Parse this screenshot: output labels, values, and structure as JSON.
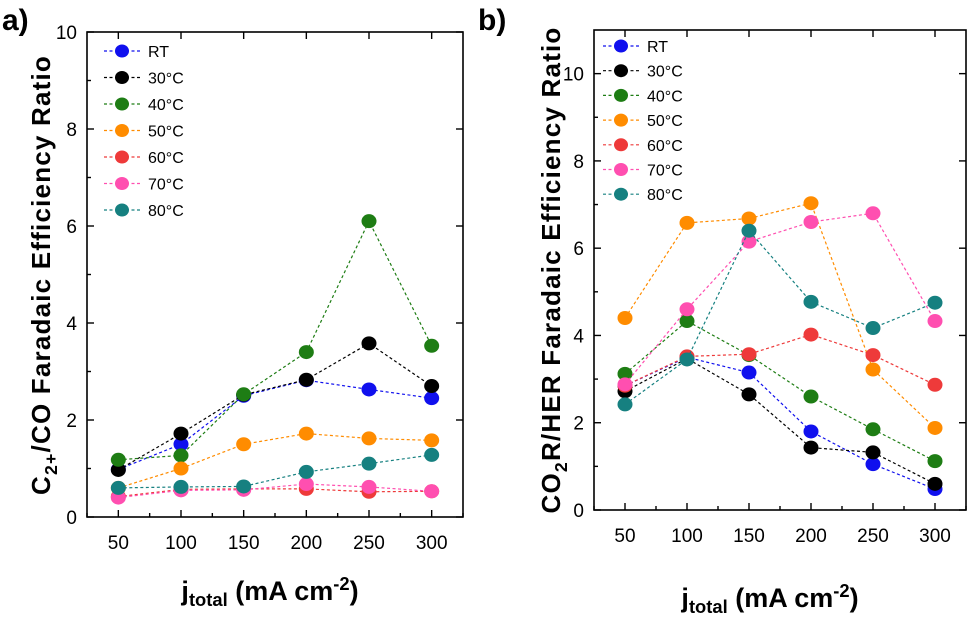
{
  "chart_data": [
    {
      "panel_label": "a)",
      "type": "line",
      "x": [
        50,
        100,
        150,
        200,
        250,
        300
      ],
      "xlim": [
        25,
        325
      ],
      "ylim": [
        0,
        10
      ],
      "xticks": [
        "50",
        "100",
        "150",
        "200",
        "250",
        "300"
      ],
      "yticks": [
        "0",
        "2",
        "4",
        "6",
        "8",
        "10"
      ],
      "xlabel": {
        "main": "j",
        "sub": "total",
        "rest": " (mA cm",
        "sup": "-2",
        "end": ")"
      },
      "ylabel": {
        "main": "C",
        "sub": "2+",
        "rest": "/CO  Faradaic Efficiency Ratio"
      },
      "legend_position": "top-left",
      "series": [
        {
          "name": "RT",
          "color": "#1010ee",
          "values": [
            0.98,
            1.5,
            2.5,
            2.82,
            2.63,
            2.45
          ]
        },
        {
          "name": "30°C",
          "color": "#000000",
          "values": [
            0.97,
            1.72,
            2.52,
            2.83,
            3.58,
            2.7
          ]
        },
        {
          "name": "40°C",
          "color": "#1e7d14",
          "values": [
            1.18,
            1.27,
            2.53,
            3.4,
            6.1,
            3.53
          ]
        },
        {
          "name": "50°C",
          "color": "#ff8c00",
          "values": [
            0.6,
            1.0,
            1.5,
            1.72,
            1.62,
            1.58
          ]
        },
        {
          "name": "60°C",
          "color": "#ee3a3a",
          "values": [
            0.42,
            0.57,
            0.58,
            0.58,
            0.52,
            0.53
          ]
        },
        {
          "name": "70°C",
          "color": "#ff4fb0",
          "values": [
            0.4,
            0.55,
            0.56,
            0.68,
            0.62,
            0.53
          ]
        },
        {
          "name": "80°C",
          "color": "#168080",
          "values": [
            0.6,
            0.62,
            0.63,
            0.93,
            1.1,
            1.28
          ]
        }
      ]
    },
    {
      "panel_label": "b)",
      "type": "line",
      "x": [
        50,
        100,
        150,
        200,
        250,
        300
      ],
      "xlim": [
        25,
        325
      ],
      "ylim": [
        0,
        11
      ],
      "xticks": [
        "50",
        "100",
        "150",
        "200",
        "250",
        "300"
      ],
      "yticks": [
        "0",
        "2",
        "4",
        "6",
        "8",
        "10"
      ],
      "xlabel": {
        "main": "j",
        "sub": "total",
        "rest": " (mA cm",
        "sup": "-2",
        "end": ")"
      },
      "ylabel": {
        "main": "CO",
        "sub": "2",
        "rest": "R/HER  Faradaic Efficiency Ratio"
      },
      "legend_position": "top-left",
      "series": [
        {
          "name": "RT",
          "color": "#1010ee",
          "values": [
            2.85,
            3.5,
            3.15,
            1.8,
            1.05,
            0.48
          ]
        },
        {
          "name": "30°C",
          "color": "#000000",
          "values": [
            2.72,
            3.47,
            2.65,
            1.43,
            1.32,
            0.6
          ]
        },
        {
          "name": "40°C",
          "color": "#1e7d14",
          "values": [
            3.12,
            4.33,
            3.55,
            2.6,
            1.85,
            1.12
          ]
        },
        {
          "name": "50°C",
          "color": "#ff8c00",
          "values": [
            4.4,
            6.58,
            6.68,
            7.03,
            3.22,
            1.88
          ]
        },
        {
          "name": "60°C",
          "color": "#ee3a3a",
          "values": [
            2.85,
            3.52,
            3.57,
            4.02,
            3.55,
            2.87
          ]
        },
        {
          "name": "70°C",
          "color": "#ff4fb0",
          "values": [
            2.88,
            4.6,
            6.15,
            6.6,
            6.8,
            4.33
          ]
        },
        {
          "name": "80°C",
          "color": "#168080",
          "values": [
            2.42,
            3.45,
            6.4,
            4.77,
            4.17,
            4.75
          ]
        }
      ]
    }
  ]
}
